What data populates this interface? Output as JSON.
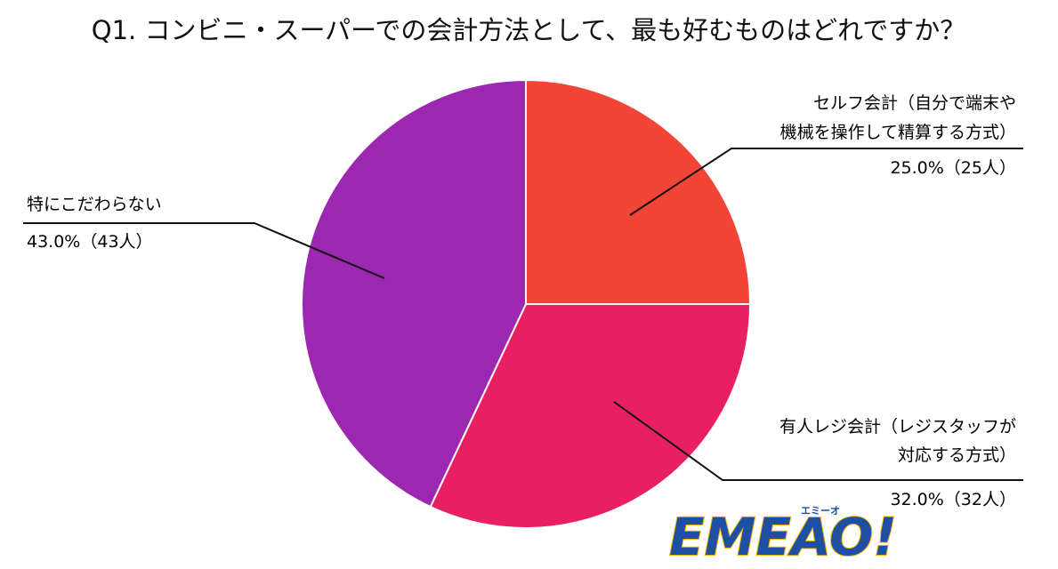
{
  "chart_data": {
    "type": "pie",
    "title": "Q1. コンビニ・スーパーでの会計方法として、最も好むものはどれですか？",
    "slices": [
      {
        "label_lines": [
          "セルフ会計（自分で端末や",
          "機械を操作して精算する方式）"
        ],
        "value": 25.0,
        "value_label": "25.0%（25人）",
        "color": "#f24437"
      },
      {
        "label_lines": [
          "有人レジ会計（レジスタッフが",
          "対応する方式）"
        ],
        "value": 32.0,
        "value_label": "32.0%（32人）",
        "color": "#e81f62"
      },
      {
        "label_lines": [
          "特にこだわらない"
        ],
        "value": 43.0,
        "value_label": "43.0%（43人）",
        "color": "#9c27b0"
      }
    ]
  },
  "logo": {
    "text": "EMEAO!",
    "subtext": "エミーオ",
    "color": "#1e4fa3",
    "accent": "#f5b800"
  }
}
